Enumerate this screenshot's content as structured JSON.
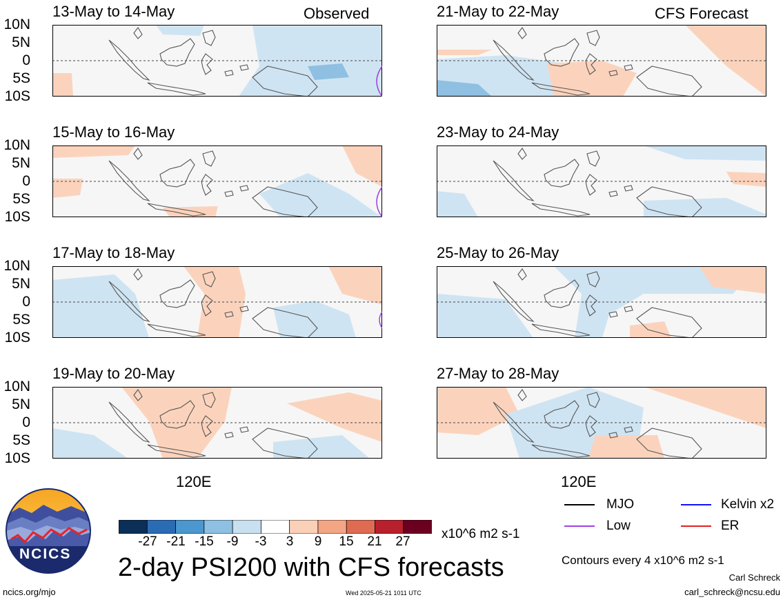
{
  "panels": [
    {
      "title": "13-May to 14-May",
      "tag": "Observed"
    },
    {
      "title": "15-May to 16-May",
      "tag": ""
    },
    {
      "title": "17-May to 18-May",
      "tag": ""
    },
    {
      "title": "19-May to 20-May",
      "tag": ""
    },
    {
      "title": "21-May to 22-May",
      "tag": "CFS Forecast"
    },
    {
      "title": "23-May to 24-May",
      "tag": ""
    },
    {
      "title": "25-May to 26-May",
      "tag": ""
    },
    {
      "title": "27-May to 28-May",
      "tag": ""
    }
  ],
  "lat_labels": [
    "10N",
    "5N",
    "0",
    "5S",
    "10S"
  ],
  "lon_label": "120E",
  "colorbar": {
    "ticks": [
      "-27",
      "-21",
      "-15",
      "-9",
      "-3",
      "3",
      "9",
      "15",
      "21",
      "27"
    ],
    "colors": [
      "#0b2f57",
      "#2a6cb4",
      "#4b97cf",
      "#8ec0e2",
      "#c8e0f0",
      "#ffffff",
      "#fbd0b8",
      "#f3a584",
      "#de6b52",
      "#b8202e",
      "#6b0020"
    ],
    "units": "x10^6 m2 s-1"
  },
  "legend": {
    "items": [
      {
        "label": "MJO",
        "color": "#000000"
      },
      {
        "label": "Kelvin x2",
        "color": "#1010ff"
      },
      {
        "label": "Low",
        "color": "#a040e0"
      },
      {
        "label": "ER",
        "color": "#e02020"
      }
    ],
    "contours": "Contours every 4 x10^6 m2 s-1"
  },
  "main_title": "2-day PSI200 with CFS forecasts",
  "logo_text": "NCICS",
  "url": "ncics.org/mjo",
  "timestamp": "Wed 2025-05-21 1011 UTC",
  "author": "Carl Schreck",
  "email": "carl_schreck@ncsu.edu"
}
